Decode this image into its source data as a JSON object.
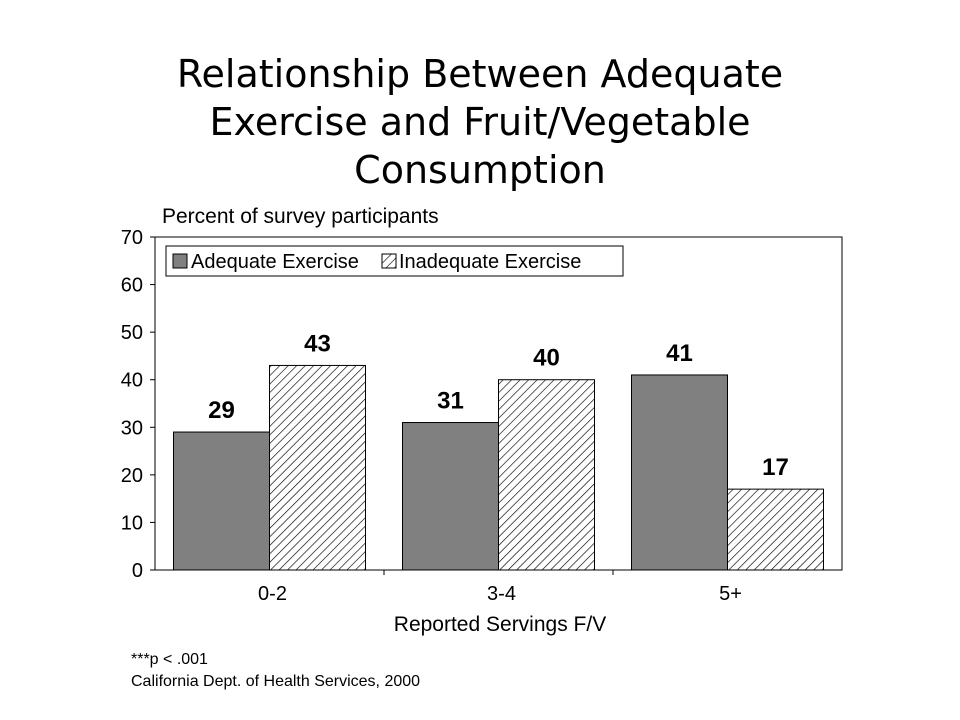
{
  "title_lines": [
    "Relationship Between Adequate",
    "Exercise and Fruit/Vegetable",
    "Consumption"
  ],
  "chart_data": {
    "type": "bar",
    "title": "Relationship Between Adequate Exercise and Fruit/Vegetable Consumption",
    "xlabel": "Reported Servings F/V",
    "ylabel": "Percent of survey participants",
    "categories": [
      "0-2",
      "3-4",
      "5+"
    ],
    "series": [
      {
        "name": "Adequate Exercise",
        "values": [
          29,
          31,
          41
        ],
        "color": "#808080",
        "pattern": "solid"
      },
      {
        "name": "Inadequate Exercise",
        "values": [
          43,
          40,
          17
        ],
        "color": "#ffffff",
        "pattern": "diagonal-hatch"
      }
    ],
    "ylim": [
      0,
      70
    ],
    "yticks": [
      "0",
      "10",
      "20",
      "30",
      "40",
      "50",
      "60",
      "70"
    ],
    "data_labels": true,
    "grid": false,
    "legend_position": "top-left"
  },
  "footnotes": [
    "***p < .001",
    "California Dept. of Health Services, 2000"
  ]
}
